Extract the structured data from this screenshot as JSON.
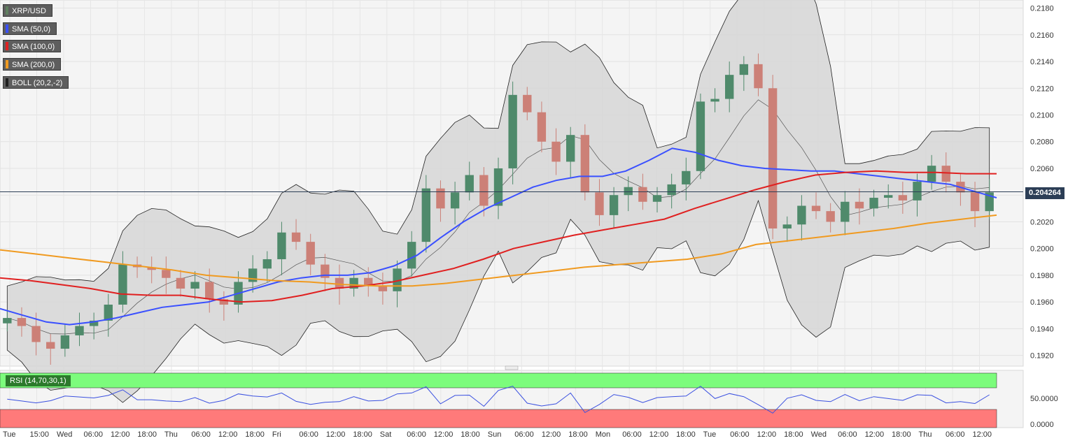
{
  "legend": {
    "symbol": {
      "label": "XRP/USD",
      "color": "#5f7f5f"
    },
    "sma50": {
      "label": "SMA (50,0)",
      "color": "#3a50ff"
    },
    "sma100": {
      "label": "SMA (100,0)",
      "color": "#e02020"
    },
    "sma200": {
      "label": "SMA (200,0)",
      "color": "#f09a20"
    },
    "boll": {
      "label": "BOLL (20,2,-2)",
      "color": "#202020"
    }
  },
  "current_price": "0.204264",
  "rsi": {
    "label": "RSI (14,70,30,1)",
    "ticks": [
      "50.0000",
      "0.0000"
    ],
    "overbought_color": "#7cfc7c",
    "oversold_color": "#ff7a7a"
  },
  "chart_data": {
    "type": "candlestick",
    "y_ticks": [
      "0.2180",
      "0.2160",
      "0.2140",
      "0.2120",
      "0.2100",
      "0.2080",
      "0.2060",
      "0.2040",
      "0.2020",
      "0.2000",
      "0.1980",
      "0.1960",
      "0.1940",
      "0.1920"
    ],
    "ylim": [
      0.1913,
      0.2185
    ],
    "x_ticks": [
      "Tue",
      "15:00",
      "Wed",
      "06:00",
      "12:00",
      "18:00",
      "Thu",
      "06:00",
      "12:00",
      "18:00",
      "Fri",
      "06:00",
      "12:00",
      "18:00",
      "Sat",
      "06:00",
      "12:00",
      "18:00",
      "Sun",
      "06:00",
      "12:00",
      "18:00",
      "Mon",
      "06:00",
      "12:00",
      "18:00",
      "Tue",
      "06:00",
      "12:00",
      "18:00",
      "Wed",
      "06:00",
      "12:00",
      "18:00",
      "Thu",
      "06:00",
      "12:00"
    ],
    "series": [
      {
        "name": "XRP/USD",
        "kind": "close_path",
        "values": [
          0.1948,
          0.1942,
          0.193,
          0.1925,
          0.1935,
          0.1942,
          0.1946,
          0.1958,
          0.1988,
          0.1986,
          0.1984,
          0.1978,
          0.197,
          0.1975,
          0.1962,
          0.1958,
          0.1975,
          0.1985,
          0.1992,
          0.2012,
          0.2005,
          0.1988,
          0.1978,
          0.197,
          0.1978,
          0.1972,
          0.1968,
          0.1985,
          0.2005,
          0.2045,
          0.203,
          0.2042,
          0.2055,
          0.2032,
          0.206,
          0.2115,
          0.2102,
          0.208,
          0.2065,
          0.2085,
          0.2042,
          0.2025,
          0.204,
          0.2046,
          0.2035,
          0.204,
          0.2048,
          0.2058,
          0.211,
          0.2112,
          0.213,
          0.2138,
          0.212,
          0.2015,
          0.2018,
          0.2032,
          0.2028,
          0.202,
          0.2035,
          0.203,
          0.2038,
          0.204,
          0.2036,
          0.205,
          0.2062,
          0.205,
          0.2042,
          0.2028,
          0.2042
        ]
      },
      {
        "name": "SMA (50,0)",
        "kind": "line",
        "values": [
          0.1955,
          0.195,
          0.1945,
          0.1943,
          0.1945,
          0.1948,
          0.1952,
          0.1956,
          0.1958,
          0.196,
          0.1965,
          0.197,
          0.1975,
          0.1978,
          0.198,
          0.198,
          0.1982,
          0.1987,
          0.1995,
          0.2008,
          0.202,
          0.203,
          0.2038,
          0.2046,
          0.2051,
          0.2054,
          0.2054,
          0.2058,
          0.2066,
          0.2075,
          0.2072,
          0.2066,
          0.2062,
          0.206,
          0.2059,
          0.2058,
          0.2058,
          0.2056,
          0.2054,
          0.2052,
          0.205,
          0.2048,
          0.2043,
          0.2038
        ]
      },
      {
        "name": "SMA (100,0)",
        "kind": "line",
        "values": [
          0.1978,
          0.1976,
          0.1973,
          0.197,
          0.1966,
          0.1965,
          0.1965,
          0.1962,
          0.196,
          0.1961,
          0.1965,
          0.197,
          0.1972,
          0.1975,
          0.198,
          0.1985,
          0.1992,
          0.2,
          0.2005,
          0.201,
          0.2014,
          0.2018,
          0.2022,
          0.203,
          0.2037,
          0.2044,
          0.205,
          0.2055,
          0.2057,
          0.2058,
          0.2057,
          0.2057,
          0.2056,
          0.2056
        ]
      },
      {
        "name": "SMA (200,0)",
        "kind": "line",
        "values": [
          0.1999,
          0.1996,
          0.1993,
          0.199,
          0.1987,
          0.1984,
          0.198,
          0.1978,
          0.1976,
          0.1975,
          0.1973,
          0.1972,
          0.1972,
          0.1974,
          0.1977,
          0.198,
          0.1983,
          0.1986,
          0.1988,
          0.199,
          0.1992,
          0.1996,
          0.2003,
          0.2006,
          0.2009,
          0.2012,
          0.2015,
          0.2019,
          0.2022,
          0.2025
        ]
      }
    ],
    "grid": true,
    "legend_position": "top-left"
  }
}
